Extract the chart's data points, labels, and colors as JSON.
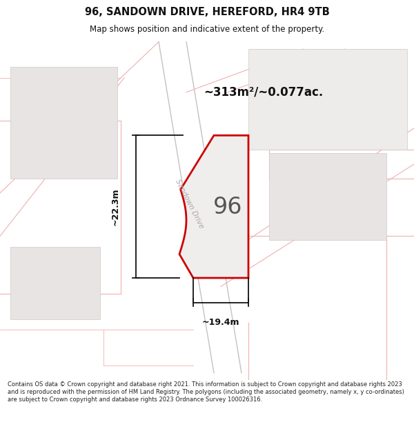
{
  "title": "96, SANDOWN DRIVE, HEREFORD, HR4 9TB",
  "subtitle": "Map shows position and indicative extent of the property.",
  "footer": "Contains OS data © Crown copyright and database right 2021. This information is subject to Crown copyright and database rights 2023 and is reproduced with the permission of HM Land Registry. The polygons (including the associated geometry, namely x, y co-ordinates) are subject to Crown copyright and database rights 2023 Ordnance Survey 100026316.",
  "area_label": "~313m²/~0.077ac.",
  "plot_number": "96",
  "dim_width": "~19.4m",
  "dim_height": "~22.3m",
  "road_label": "Sandown Drive",
  "map_bg": "#f7f7f7",
  "plot_fill": "#f0eded",
  "plot_edge": "#cc0000",
  "road_color": "#f0b0b0",
  "road_color2": "#c8c0c0",
  "neighbor_fill": "#e8e4e4",
  "neighbor_edge": "#d0c8c8",
  "dim_color": "#111111",
  "title_color": "#111111",
  "footer_color": "#222222"
}
